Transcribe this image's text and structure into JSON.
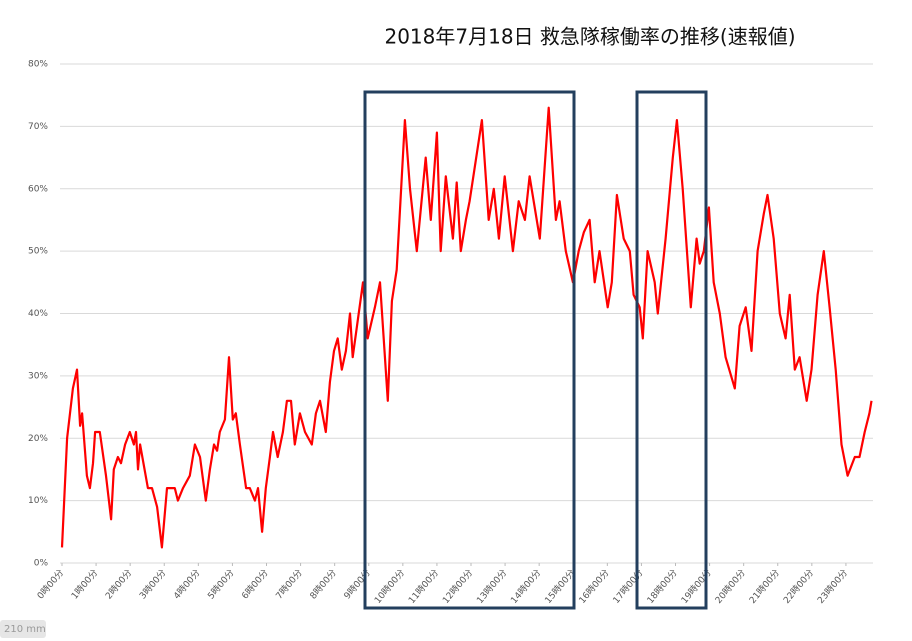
{
  "chart_data": {
    "type": "line",
    "title": "2018年7月18日 救急隊稼働率の推移(速報値)",
    "x": [
      0,
      0.15,
      0.32,
      0.44,
      0.53,
      0.59,
      0.73,
      0.82,
      0.91,
      0.97,
      1.11,
      1.29,
      1.44,
      1.52,
      1.64,
      1.73,
      1.85,
      1.99,
      2.11,
      2.17,
      2.23,
      2.29,
      2.52,
      2.64,
      2.79,
      2.93,
      3.08,
      3.31,
      3.4,
      3.55,
      3.75,
      3.9,
      4.05,
      4.22,
      4.34,
      4.46,
      4.55,
      4.63,
      4.78,
      4.9,
      5.01,
      5.1,
      5.22,
      5.4,
      5.51,
      5.66,
      5.75,
      5.87,
      5.98,
      6.1,
      6.19,
      6.33,
      6.48,
      6.6,
      6.72,
      6.83,
      6.98,
      7.13,
      7.33,
      7.45,
      7.57,
      7.74,
      7.86,
      7.98,
      8.09,
      8.21,
      8.33,
      8.45,
      8.53,
      8.83,
      8.97,
      9.18,
      9.33,
      9.56,
      9.68,
      9.82,
      10.06,
      10.21,
      10.41,
      10.67,
      10.82,
      11.0,
      11.11,
      11.26,
      11.47,
      11.58,
      11.7,
      11.85,
      11.96,
      12.32,
      12.52,
      12.67,
      12.82,
      12.99,
      13.23,
      13.4,
      13.58,
      13.72,
      14.02,
      14.28,
      14.49,
      14.6,
      14.78,
      14.99,
      15.16,
      15.31,
      15.48,
      15.63,
      15.77,
      16.01,
      16.13,
      16.28,
      16.48,
      16.66,
      16.77,
      16.95,
      17.04,
      17.18,
      17.39,
      17.48,
      17.71,
      17.92,
      18.04,
      18.21,
      18.36,
      18.45,
      18.62,
      18.71,
      18.83,
      18.98,
      19.12,
      19.3,
      19.47,
      19.74,
      19.88,
      20.06,
      20.23,
      20.41,
      20.59,
      20.7,
      20.88,
      21.06,
      21.23,
      21.35,
      21.5,
      21.64,
      21.85,
      21.99,
      22.17,
      22.35,
      22.52,
      22.7,
      22.87,
      23.05,
      23.26,
      23.4,
      23.55,
      23.69,
      23.75
    ],
    "series": [
      {
        "color": "#ff0000",
        "values": [
          2.5,
          20,
          28,
          31,
          22,
          24,
          14,
          12,
          16,
          21,
          21,
          14,
          7,
          15,
          17,
          16,
          19,
          21,
          19,
          21,
          15,
          19,
          12,
          12,
          9,
          2.5,
          12,
          12,
          10,
          12,
          14,
          19,
          17,
          10,
          15,
          19,
          18,
          21,
          23,
          33,
          23,
          24,
          19,
          12,
          12,
          10,
          12,
          5,
          12,
          17,
          21,
          17,
          21,
          26,
          26,
          19,
          24,
          21,
          19,
          24,
          26,
          21,
          29,
          34,
          36,
          31,
          34,
          40,
          33,
          45,
          36,
          41,
          45,
          26,
          42,
          47,
          71,
          60,
          50,
          65,
          55,
          69,
          50,
          62,
          52,
          61,
          50,
          55,
          58,
          71,
          55,
          60,
          52,
          62,
          50,
          58,
          55,
          62,
          52,
          73,
          55,
          58,
          50,
          45,
          50,
          53,
          55,
          45,
          50,
          41,
          45,
          59,
          52,
          50,
          43,
          41,
          36,
          50,
          45,
          40,
          52,
          65,
          71,
          60,
          48,
          41,
          52,
          48,
          50,
          57,
          45,
          40,
          33,
          28,
          38,
          41,
          34,
          50,
          56,
          59,
          52,
          40,
          36,
          43,
          31,
          33,
          26,
          31,
          43,
          50,
          41,
          31,
          19,
          14,
          17,
          17,
          21,
          24,
          26
        ]
      }
    ],
    "xlim": [
      0,
      24
    ],
    "xticks": [
      {
        "value": 0,
        "label": "0時00分"
      },
      {
        "value": 1,
        "label": "1時00分"
      },
      {
        "value": 2,
        "label": "2時00分"
      },
      {
        "value": 3,
        "label": "3時00分"
      },
      {
        "value": 4,
        "label": "4時00分"
      },
      {
        "value": 5,
        "label": "5時00分"
      },
      {
        "value": 6,
        "label": "6時00分"
      },
      {
        "value": 7,
        "label": "7時00分"
      },
      {
        "value": 8,
        "label": "8時00分"
      },
      {
        "value": 9,
        "label": "9時00分"
      },
      {
        "value": 10,
        "label": "10時00分"
      },
      {
        "value": 11,
        "label": "11時00分"
      },
      {
        "value": 12,
        "label": "12時00分"
      },
      {
        "value": 13,
        "label": "13時00分"
      },
      {
        "value": 14,
        "label": "14時00分"
      },
      {
        "value": 15,
        "label": "15時00分"
      },
      {
        "value": 16,
        "label": "16時00分"
      },
      {
        "value": 17,
        "label": "17時00分"
      },
      {
        "value": 18,
        "label": "18時00分"
      },
      {
        "value": 19,
        "label": "19時00分"
      },
      {
        "value": 20,
        "label": "20時00分"
      },
      {
        "value": 21,
        "label": "21時00分"
      },
      {
        "value": 22,
        "label": "22時00分"
      },
      {
        "value": 23,
        "label": "23時00分"
      }
    ],
    "ylim": [
      0,
      80
    ],
    "yticks": [
      {
        "value": 0,
        "label": "0%"
      },
      {
        "value": 10,
        "label": "10%"
      },
      {
        "value": 20,
        "label": "20%"
      },
      {
        "value": 30,
        "label": "30%"
      },
      {
        "value": 40,
        "label": "40%"
      },
      {
        "value": 50,
        "label": "50%"
      },
      {
        "value": 60,
        "label": "60%"
      },
      {
        "value": 70,
        "label": "70%"
      },
      {
        "value": 80,
        "label": "80%"
      }
    ],
    "grid": true,
    "overlay_label": "210 mm"
  }
}
